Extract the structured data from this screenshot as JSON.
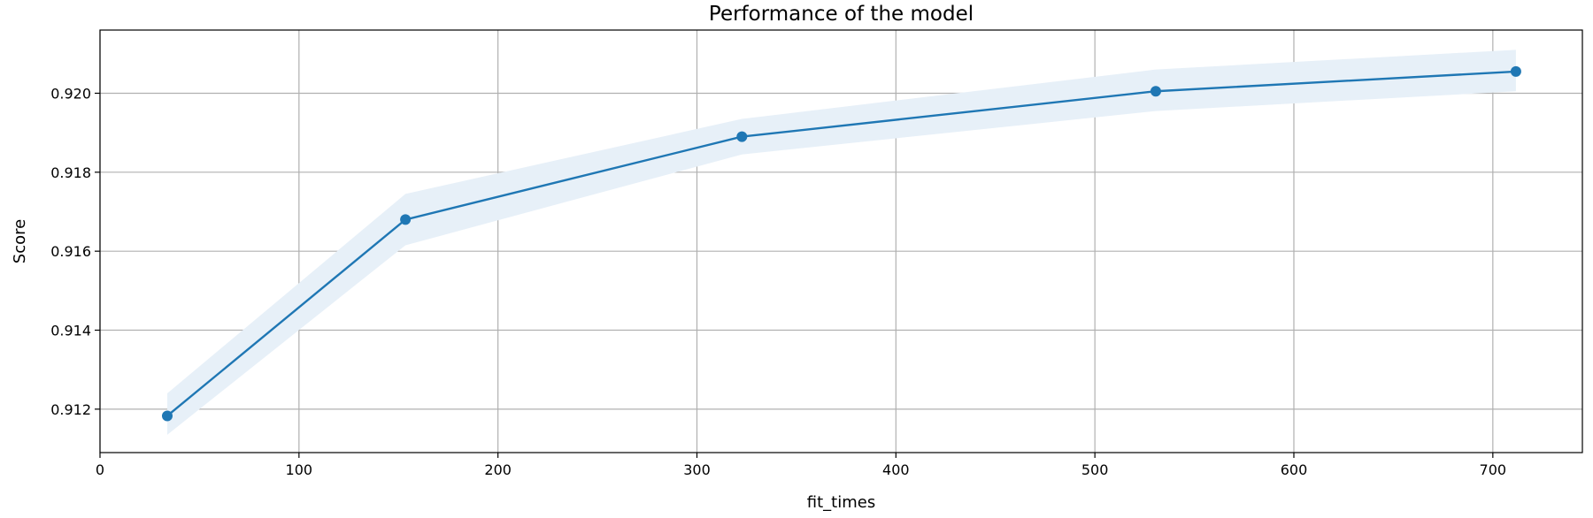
{
  "chart_data": {
    "type": "line",
    "title": "Performance of the model",
    "xlabel": "fit_times",
    "ylabel": "Score",
    "xlim": [
      0,
      745
    ],
    "ylim": [
      0.9109,
      0.9216
    ],
    "xticks": [
      0,
      100,
      200,
      300,
      400,
      500,
      600,
      700
    ],
    "yticks": [
      0.912,
      0.914,
      0.916,
      0.918,
      0.92
    ],
    "ytick_labels": [
      "0.912",
      "0.914",
      "0.916",
      "0.918",
      "0.920"
    ],
    "grid": true,
    "legend": "none",
    "series": [
      {
        "x": [
          33.8,
          153.5,
          322.6,
          530.6,
          711.6
        ],
        "values": [
          0.91183,
          0.9168,
          0.9189,
          0.92005,
          0.92055
        ],
        "band_lower": [
          0.91135,
          0.91615,
          0.91845,
          0.91955,
          0.92005
        ],
        "band_upper": [
          0.9124,
          0.91745,
          0.91935,
          0.9206,
          0.9211
        ],
        "color": "#1f77b4",
        "band_color": "#e7f0f8"
      }
    ]
  }
}
